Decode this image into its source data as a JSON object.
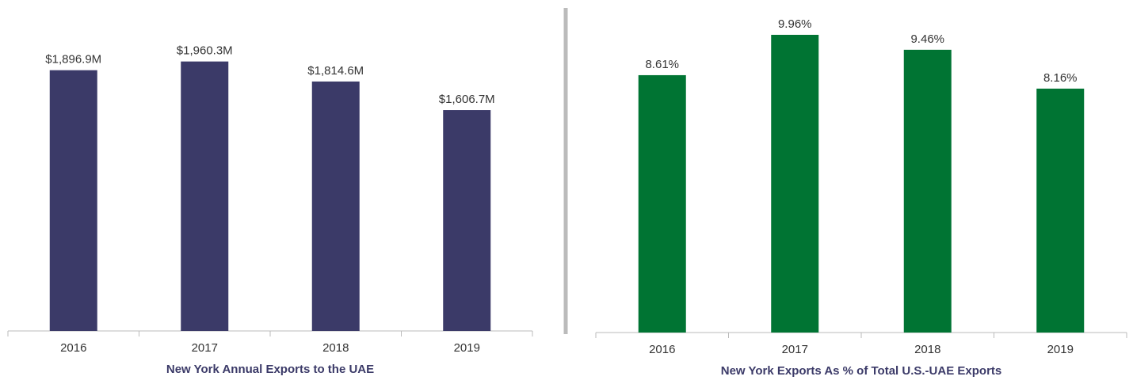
{
  "chart_data": [
    {
      "type": "bar",
      "title": "New York Annual Exports to the UAE",
      "categories": [
        "2016",
        "2017",
        "2018",
        "2019"
      ],
      "values": [
        1896.9,
        1960.3,
        1814.6,
        1606.7
      ],
      "value_labels": [
        "$1,896.9M",
        "$1,960.3M",
        "$1,814.6M",
        "$1,606.7M"
      ],
      "color": "#3b3a68",
      "ylim": [
        0,
        2350
      ]
    },
    {
      "type": "bar",
      "title": "New York Exports As % of Total U.S.-UAE Exports",
      "categories": [
        "2016",
        "2017",
        "2018",
        "2019"
      ],
      "values": [
        8.61,
        9.96,
        9.46,
        8.16
      ],
      "value_labels": [
        "8.61%",
        "9.96%",
        "9.46%",
        "8.16%"
      ],
      "color": "#007433",
      "ylim": [
        0,
        10.86
      ]
    }
  ]
}
